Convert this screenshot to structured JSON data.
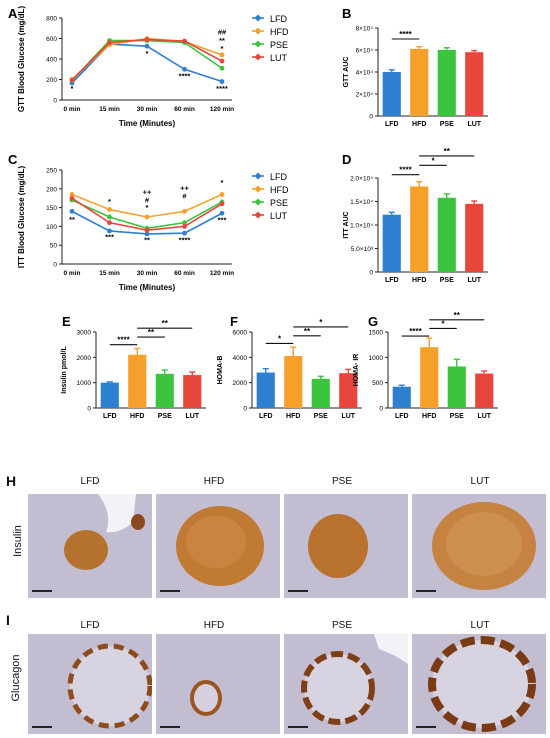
{
  "panels": {
    "A": "A",
    "B": "B",
    "C": "C",
    "D": "D",
    "E": "E",
    "F": "F",
    "G": "G",
    "H": "H",
    "I": "I"
  },
  "colors": {
    "LFD": "#2d7fd0",
    "HFD": "#f5a02a",
    "PSE": "#3cc43c",
    "LUT": "#e8453c",
    "tissue_bg": "#c9c3d6",
    "stain": "#b56a2a"
  },
  "legend": [
    "LFD",
    "HFD",
    "PSE",
    "LUT"
  ],
  "chart_data": [
    {
      "id": "A",
      "type": "line",
      "ylabel": "GTT Blood Glucose (mg/dL)",
      "xlabel": "Time (Minutes)",
      "categories": [
        "0 min",
        "15 min",
        "30 min",
        "60 min",
        "120 min"
      ],
      "ylim": [
        0,
        800
      ],
      "yticks": [
        "0",
        "200",
        "400",
        "600",
        "800"
      ],
      "series": [
        {
          "name": "LFD",
          "values": [
            165,
            545,
            525,
            300,
            180
          ]
        },
        {
          "name": "HFD",
          "values": [
            200,
            540,
            600,
            570,
            440
          ]
        },
        {
          "name": "PSE",
          "values": [
            190,
            580,
            580,
            560,
            310
          ]
        },
        {
          "name": "LUT",
          "values": [
            195,
            560,
            590,
            575,
            380
          ]
        }
      ],
      "annotations": [
        {
          "text": "*",
          "x": 0,
          "y": 90
        },
        {
          "text": "*",
          "x": 2,
          "y": 430
        },
        {
          "text": "****",
          "x": 3,
          "y": 210
        },
        {
          "text": "##",
          "x": 4,
          "y": 640
        },
        {
          "text": "**",
          "x": 4,
          "y": 555
        },
        {
          "text": "*",
          "x": 4,
          "y": 480
        },
        {
          "text": "****",
          "x": 4,
          "y": 90
        }
      ]
    },
    {
      "id": "B",
      "type": "bar",
      "ylabel": "GTT AUC",
      "categories": [
        "LFD",
        "HFD",
        "PSE",
        "LUT"
      ],
      "values": [
        40000,
        61000,
        60000,
        58000
      ],
      "errors": [
        2000,
        2000,
        2000,
        1500
      ],
      "ylim": [
        0,
        80000
      ],
      "yticks": [
        "0",
        "2×10⁴",
        "4×10⁴",
        "6×10⁴",
        "8×10⁴"
      ],
      "brackets": [
        {
          "from": 0,
          "to": 1,
          "label": "****",
          "y": 70000
        }
      ]
    },
    {
      "id": "C",
      "type": "line",
      "ylabel": "ITT Blood Glucose (mg/dL)",
      "xlabel": "Time (Minutes)",
      "categories": [
        "0 min",
        "15 min",
        "30 min",
        "60 min",
        "120 min"
      ],
      "ylim": [
        0,
        250
      ],
      "yticks": [
        "0",
        "50",
        "100",
        "150",
        "200",
        "250"
      ],
      "series": [
        {
          "name": "LFD",
          "values": [
            140,
            88,
            80,
            82,
            135
          ]
        },
        {
          "name": "HFD",
          "values": [
            185,
            145,
            125,
            140,
            185
          ]
        },
        {
          "name": "PSE",
          "values": [
            170,
            125,
            95,
            110,
            165
          ]
        },
        {
          "name": "LUT",
          "values": [
            175,
            110,
            90,
            100,
            160
          ]
        }
      ],
      "annotations": [
        {
          "text": "**",
          "x": 0,
          "y": 112
        },
        {
          "text": "*",
          "x": 1,
          "y": 160
        },
        {
          "text": "***",
          "x": 1,
          "y": 65
        },
        {
          "text": "++",
          "x": 2,
          "y": 185
        },
        {
          "text": "#",
          "x": 2,
          "y": 163
        },
        {
          "text": "*",
          "x": 2,
          "y": 143
        },
        {
          "text": "**",
          "x": 2,
          "y": 57
        },
        {
          "text": "++",
          "x": 3,
          "y": 195
        },
        {
          "text": "#",
          "x": 3,
          "y": 174
        },
        {
          "text": "****",
          "x": 3,
          "y": 57
        },
        {
          "text": "*",
          "x": 4,
          "y": 210
        },
        {
          "text": "***",
          "x": 4,
          "y": 110
        }
      ]
    },
    {
      "id": "D",
      "type": "bar",
      "ylabel": "ITT AUC",
      "categories": [
        "LFD",
        "HFD",
        "PSE",
        "LUT"
      ],
      "values": [
        12200,
        18200,
        15800,
        14500
      ],
      "errors": [
        500,
        1000,
        800,
        600
      ],
      "ylim": [
        0,
        20000
      ],
      "yticks": [
        "0",
        "5.0×10³",
        "1.0×10⁴",
        "1.5×10⁴",
        "2.0×10⁴"
      ],
      "brackets": [
        {
          "from": 0,
          "to": 1,
          "label": "****",
          "y": 20700
        },
        {
          "from": 1,
          "to": 2,
          "label": "*",
          "y": 22700
        },
        {
          "from": 1,
          "to": 3,
          "label": "**",
          "y": 24700
        }
      ]
    },
    {
      "id": "E",
      "type": "bar",
      "ylabel": "Insulin pmol/L",
      "categories": [
        "LFD",
        "HFD",
        "PSE",
        "LUT"
      ],
      "values": [
        1000,
        2100,
        1350,
        1300
      ],
      "errors": [
        30,
        250,
        150,
        120
      ],
      "ylim": [
        0,
        3000
      ],
      "yticks": [
        "0",
        "1000",
        "2000",
        "3000"
      ],
      "brackets": [
        {
          "from": 0,
          "to": 1,
          "label": "****",
          "y": 2500
        },
        {
          "from": 1,
          "to": 2,
          "label": "**",
          "y": 2800
        },
        {
          "from": 1,
          "to": 3,
          "label": "**",
          "y": 3150
        }
      ]
    },
    {
      "id": "F",
      "type": "bar",
      "ylabel": "HOMA-B",
      "categories": [
        "LFD",
        "HFD",
        "PSE",
        "LUT"
      ],
      "values": [
        2800,
        4100,
        2300,
        2750
      ],
      "errors": [
        300,
        700,
        200,
        300
      ],
      "ylim": [
        0,
        6000
      ],
      "yticks": [
        "0",
        "2000",
        "4000",
        "6000"
      ],
      "brackets": [
        {
          "from": 0,
          "to": 1,
          "label": "*",
          "y": 5100
        },
        {
          "from": 1,
          "to": 2,
          "label": "**",
          "y": 5700
        },
        {
          "from": 1,
          "to": 3,
          "label": "*",
          "y": 6400
        }
      ]
    },
    {
      "id": "G",
      "type": "bar",
      "ylabel": "HOMA- IR",
      "categories": [
        "LFD",
        "HFD",
        "PSE",
        "LUT"
      ],
      "values": [
        420,
        1200,
        820,
        680
      ],
      "errors": [
        30,
        180,
        140,
        50
      ],
      "ylim": [
        0,
        1500
      ],
      "yticks": [
        "0",
        "500",
        "1000",
        "1500"
      ],
      "brackets": [
        {
          "from": 0,
          "to": 1,
          "label": "****",
          "y": 1420
        },
        {
          "from": 1,
          "to": 2,
          "label": "*",
          "y": 1570
        },
        {
          "from": 1,
          "to": 3,
          "label": "**",
          "y": 1740
        }
      ]
    }
  ],
  "histology": {
    "H": {
      "row_label": "Insulin",
      "columns": [
        "LFD",
        "HFD",
        "PSE",
        "LUT"
      ]
    },
    "I": {
      "row_label": "Glucagon",
      "columns": [
        "LFD",
        "HFD",
        "PSE",
        "LUT"
      ]
    }
  }
}
